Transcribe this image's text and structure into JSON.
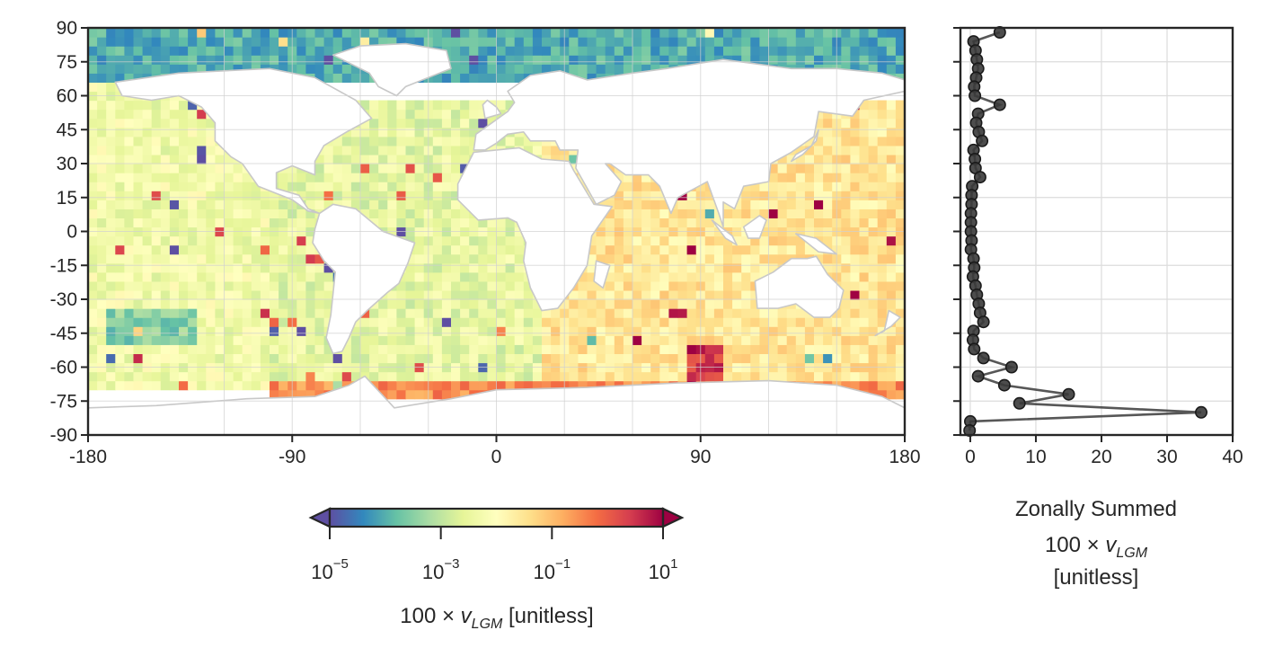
{
  "map": {
    "x_ticks": [
      "-180",
      "-90",
      "0",
      "90",
      "180"
    ],
    "y_ticks": [
      "90",
      "75",
      "60",
      "45",
      "30",
      "15",
      "0",
      "-15",
      "-30",
      "-45",
      "-60",
      "-75",
      "-90"
    ]
  },
  "colorbar": {
    "label_pre": "100 × ",
    "label_var": "v",
    "label_sub": "LGM",
    "label_post": " [unitless]",
    "scale": "log",
    "extend": "both",
    "colormap": "Spectral_r",
    "ticks": [
      {
        "base": "10",
        "exp": "−5"
      },
      {
        "base": "10",
        "exp": "−3"
      },
      {
        "base": "10",
        "exp": "−1"
      },
      {
        "base": "10",
        "exp": "1"
      }
    ],
    "colors": [
      "#5e4fa2",
      "#3288bd",
      "#66c2a5",
      "#abdda4",
      "#e6f598",
      "#ffffbf",
      "#fee08b",
      "#fdae61",
      "#f46d43",
      "#d53e4f",
      "#9e0142"
    ]
  },
  "profile": {
    "x_ticks": [
      "0",
      "10",
      "20",
      "30",
      "40"
    ],
    "xlabel_line1": "Zonally Summed",
    "xlabel_pre": "100 × ",
    "xlabel_var": "v",
    "xlabel_sub": "LGM",
    "xlabel_line3": "[unitless]",
    "line_color": "#3a3a3a"
  },
  "chart_data": [
    {
      "type": "heatmap",
      "title": "",
      "xlabel": "",
      "ylabel": "",
      "xlim": [
        -180,
        180
      ],
      "ylim": [
        -90,
        90
      ],
      "x_ticks": [
        -180,
        -90,
        0,
        90,
        180
      ],
      "y_ticks": [
        90,
        75,
        60,
        45,
        30,
        15,
        0,
        -15,
        -30,
        -45,
        -60,
        -75,
        -90
      ],
      "grid": true,
      "color_scale": "log",
      "color_range": [
        1e-05,
        10
      ],
      "regions": [
        {
          "lon": [
            -180,
            180
          ],
          "lat": [
            66,
            90
          ],
          "value": 0.0001
        },
        {
          "lon": [
            -180,
            -100
          ],
          "lat": [
            -70,
            66
          ],
          "value": 0.005
        },
        {
          "lon": [
            -100,
            20
          ],
          "lat": [
            -70,
            60
          ],
          "value": 0.003
        },
        {
          "lon": [
            20,
            180
          ],
          "lat": [
            -70,
            60
          ],
          "value": 0.03
        },
        {
          "lon": [
            -170,
            -130
          ],
          "lat": [
            -50,
            -35
          ],
          "value": 0.0003
        },
        {
          "lon": [
            85,
            100
          ],
          "lat": [
            -65,
            -50
          ],
          "value": 3
        },
        {
          "lon": [
            -10,
            40
          ],
          "lat": [
            -80,
            -70
          ],
          "value": 3
        },
        {
          "lon": [
            -100,
            180
          ],
          "lat": [
            -75,
            -65
          ],
          "value": 0.3
        }
      ]
    },
    {
      "type": "line",
      "title": "",
      "xlabel": "Zonally Summed 100 × v_LGM [unitless]",
      "ylabel": "",
      "xlim": [
        -1.5,
        40
      ],
      "ylim": [
        -90,
        90
      ],
      "x_ticks": [
        0,
        10,
        20,
        30,
        40
      ],
      "grid": true,
      "series": [
        {
          "lat": [
            88,
            84,
            80,
            76,
            72,
            68,
            64,
            60,
            56,
            52,
            48,
            44,
            40,
            36,
            32,
            28,
            24,
            20,
            16,
            12,
            8,
            4,
            0,
            -4,
            -8,
            -12,
            -16,
            -20,
            -24,
            -28,
            -32,
            -36,
            -40,
            -44,
            -48,
            -52,
            -56,
            -60,
            -64,
            -68,
            -72,
            -76,
            -80,
            -84,
            -88
          ],
          "values": [
            4.5,
            0.5,
            0.8,
            1.0,
            1.2,
            0.9,
            0.6,
            0.7,
            4.5,
            1.2,
            0.9,
            1.3,
            1.8,
            0.5,
            0.7,
            0.8,
            1.5,
            0.3,
            0.2,
            0.2,
            0.1,
            0.1,
            0.1,
            0.2,
            0.1,
            0.5,
            0.6,
            0.4,
            0.8,
            1.0,
            1.3,
            1.5,
            2.0,
            0.5,
            0.4,
            0.6,
            2.0,
            6.3,
            1.2,
            5.2,
            15.0,
            7.5,
            35.2,
            0.0,
            -0.1
          ]
        }
      ]
    }
  ]
}
